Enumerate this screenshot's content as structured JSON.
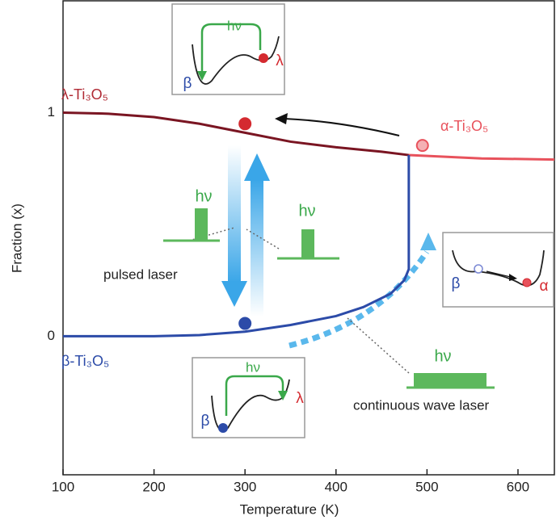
{
  "chart_data": {
    "type": "line",
    "x_label": "Temperature (K)",
    "y_label": "Fraction (x)",
    "xlim": [
      100,
      640
    ],
    "ylim": [
      -0.62,
      1.5
    ],
    "xticks": [
      100,
      200,
      300,
      400,
      500,
      600
    ],
    "yticks": [
      0,
      1
    ],
    "series": [
      {
        "color": "#7a1522",
        "x": [
          100,
          150,
          200,
          250,
          300,
          350,
          400,
          450,
          480
        ],
        "values": [
          1,
          0.995,
          0.98,
          0.95,
          0.91,
          0.87,
          0.845,
          0.825,
          0.81
        ]
      },
      {
        "color": "#e8525c",
        "x": [
          480,
          560,
          640
        ],
        "values": [
          0.81,
          0.795,
          0.79
        ]
      },
      {
        "color": "#2c4ba8",
        "x": [
          100,
          200,
          250,
          300,
          350,
          400,
          430,
          460,
          475,
          480,
          480
        ],
        "values": [
          0,
          0,
          0.005,
          0.02,
          0.05,
          0.09,
          0.13,
          0.19,
          0.25,
          0.3,
          0.81
        ]
      }
    ],
    "markers": [
      {
        "x": 300,
        "y": 0.95,
        "color": "#d42a30",
        "filled": true
      },
      {
        "x": 495,
        "y": 0.853,
        "color": "#e8525c",
        "filled": false
      },
      {
        "x": 300,
        "y": 0.057,
        "color": "#2c4ba8",
        "filled": true
      }
    ],
    "annotations": [
      "λ-Ti₃O₅",
      "α-Ti₃O₅",
      "β-Ti₃O₅",
      "pulsed laser",
      "continuous wave laser",
      "hν",
      "hν",
      "hν",
      "hν",
      "β",
      "λ",
      "β",
      "α",
      "hν",
      "β",
      "λ"
    ]
  }
}
